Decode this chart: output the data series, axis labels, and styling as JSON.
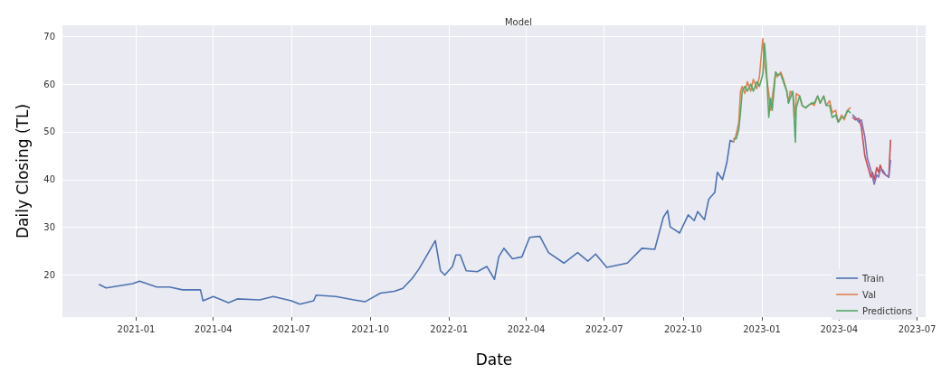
{
  "chart_data": {
    "type": "line",
    "title": "Model",
    "xlabel": "Date",
    "ylabel": "Daily Closing (TL)",
    "xlim": [
      "2020-10-07",
      "2023-07-11"
    ],
    "xticks": [
      "2021-01",
      "2021-04",
      "2021-07",
      "2021-10",
      "2022-01",
      "2022-04",
      "2022-07",
      "2022-10",
      "2023-01",
      "2023-04",
      "2023-07"
    ],
    "ylim": [
      11.2,
      72.3
    ],
    "yticks": [
      20,
      30,
      40,
      50,
      60,
      70
    ],
    "grid": true,
    "legend": "bottom right",
    "marker": "none",
    "line_style": "solid",
    "series": [
      {
        "name": "Train",
        "color": "#4c72b0",
        "x": [
          "2020-11-19",
          "2020-11-27",
          "2020-12-28",
          "2021-01-05",
          "2021-01-25",
          "2021-02-09",
          "2021-02-24",
          "2021-03-17",
          "2021-03-20",
          "2021-04-01",
          "2021-04-19",
          "2021-04-29",
          "2021-05-25",
          "2021-06-10",
          "2021-07-01",
          "2021-07-11",
          "2021-07-27",
          "2021-07-30",
          "2021-08-22",
          "2021-09-12",
          "2021-09-25",
          "2021-10-01",
          "2021-10-13",
          "2021-10-29",
          "2021-11-08",
          "2021-11-19",
          "2021-11-27",
          "2021-12-08",
          "2021-12-16",
          "2021-12-22",
          "2021-12-27",
          "2022-01-05",
          "2022-01-09",
          "2022-01-14",
          "2022-01-21",
          "2022-02-03",
          "2022-02-14",
          "2022-02-23",
          "2022-02-28",
          "2022-03-06",
          "2022-03-16",
          "2022-03-27",
          "2022-04-05",
          "2022-04-17",
          "2022-04-27",
          "2022-05-15",
          "2022-05-31",
          "2022-06-12",
          "2022-06-21",
          "2022-07-04",
          "2022-07-28",
          "2022-08-14",
          "2022-08-29",
          "2022-09-08",
          "2022-09-13",
          "2022-09-16",
          "2022-09-27",
          "2022-10-07",
          "2022-10-14",
          "2022-10-18",
          "2022-10-26",
          "2022-10-31",
          "2022-11-07",
          "2022-11-10",
          "2022-11-16",
          "2022-11-21",
          "2022-11-25",
          "2022-11-29"
        ],
        "values": [
          18.0,
          17.3,
          18.2,
          18.7,
          17.5,
          17.5,
          16.9,
          16.9,
          14.6,
          15.5,
          14.2,
          15.0,
          14.8,
          15.5,
          14.6,
          13.9,
          14.6,
          15.8,
          15.5,
          14.8,
          14.4,
          15.0,
          16.2,
          16.6,
          17.2,
          19.3,
          21.3,
          24.7,
          27.2,
          20.9,
          20.0,
          21.8,
          24.2,
          24.2,
          20.9,
          20.7,
          21.8,
          19.1,
          23.8,
          25.6,
          23.4,
          23.8,
          27.9,
          28.1,
          24.7,
          22.5,
          24.7,
          22.9,
          24.4,
          21.6,
          22.5,
          25.6,
          25.4,
          32.1,
          33.5,
          30.1,
          28.8,
          32.6,
          31.4,
          33.3,
          31.6,
          35.9,
          37.3,
          41.5,
          40.0,
          43.5,
          48.2,
          47.9
        ]
      },
      {
        "name": "Val",
        "color": "#dd8452",
        "x": [
          "2022-11-29",
          "2022-12-02",
          "2022-12-05",
          "2022-12-07",
          "2022-12-09",
          "2022-12-12",
          "2022-12-15",
          "2022-12-19",
          "2022-12-22",
          "2022-12-26",
          "2022-12-29",
          "2023-01-02",
          "2023-01-04",
          "2023-01-06",
          "2023-01-09",
          "2023-01-11",
          "2023-01-13",
          "2023-01-17",
          "2023-01-19",
          "2023-01-23",
          "2023-01-26",
          "2023-01-30",
          "2023-02-01",
          "2023-02-03",
          "2023-02-06",
          "2023-02-09",
          "2023-02-10",
          "2023-02-14",
          "2023-02-17",
          "2023-02-21",
          "2023-02-24",
          "2023-02-28",
          "2023-03-03",
          "2023-03-07",
          "2023-03-10",
          "2023-03-14",
          "2023-03-17",
          "2023-03-21",
          "2023-03-24",
          "2023-03-28",
          "2023-03-31",
          "2023-04-04",
          "2023-04-07",
          "2023-04-11",
          "2023-04-14"
        ],
        "values": [
          47.9,
          49.5,
          52,
          58.5,
          59.5,
          58,
          60.5,
          58.5,
          61,
          59,
          61.5,
          69.5,
          64,
          62,
          58,
          54.5,
          57,
          62.5,
          61.5,
          62.5,
          61,
          58.5,
          56,
          58.5,
          58,
          53,
          58,
          57.5,
          55.5,
          55,
          55.5,
          56,
          55.5,
          57.5,
          56,
          57.5,
          55.5,
          56.5,
          54,
          54.5,
          52,
          53.5,
          52.5,
          54.5,
          55
        ]
      },
      {
        "name": "Predictions",
        "color": "#55a868",
        "x": [
          "2022-11-29",
          "2022-12-02",
          "2022-12-05",
          "2022-12-07",
          "2022-12-09",
          "2022-12-12",
          "2022-12-15",
          "2022-12-19",
          "2022-12-22",
          "2022-12-26",
          "2022-12-29",
          "2023-01-02",
          "2023-01-04",
          "2023-01-06",
          "2023-01-09",
          "2023-01-11",
          "2023-01-13",
          "2023-01-17",
          "2023-01-19",
          "2023-01-23",
          "2023-01-26",
          "2023-01-30",
          "2023-02-01",
          "2023-02-03",
          "2023-02-06",
          "2023-02-09",
          "2023-02-10",
          "2023-02-14",
          "2023-02-17",
          "2023-02-21",
          "2023-02-24",
          "2023-02-28",
          "2023-03-03",
          "2023-03-07",
          "2023-03-10",
          "2023-03-14",
          "2023-03-17",
          "2023-03-21",
          "2023-03-24",
          "2023-03-28",
          "2023-03-31",
          "2023-04-04",
          "2023-04-07",
          "2023-04-11",
          "2023-04-14"
        ],
        "values": [
          48.5,
          48.5,
          50.5,
          54,
          58.5,
          59.5,
          58.5,
          60,
          58.5,
          60.5,
          59.5,
          62,
          68.5,
          64,
          53,
          57,
          54.5,
          62.5,
          62,
          62,
          60.5,
          58.5,
          56,
          57,
          58.5,
          47.8,
          55,
          57.5,
          55.5,
          55,
          55.5,
          56,
          56,
          57.5,
          56,
          57.5,
          55.5,
          55.5,
          53,
          53.5,
          52,
          53,
          53,
          54.5,
          54
        ]
      },
      {
        "color": "#c44e52",
        "x": [
          "2023-04-17",
          "2023-04-20",
          "2023-04-24",
          "2023-04-27",
          "2023-05-01",
          "2023-05-04",
          "2023-05-08",
          "2023-05-10",
          "2023-05-12",
          "2023-05-15",
          "2023-05-17",
          "2023-05-19",
          "2023-05-22",
          "2023-05-25",
          "2023-05-29",
          "2023-05-31"
        ],
        "values": [
          53,
          52.5,
          52.8,
          51,
          45,
          43,
          40.5,
          41.5,
          40,
          42.5,
          41.5,
          43,
          41.5,
          41,
          40.5,
          48.2
        ]
      },
      {
        "color": "#8172b3",
        "x": [
          "2023-04-17",
          "2023-04-20",
          "2023-04-24",
          "2023-04-27",
          "2023-05-01",
          "2023-05-04",
          "2023-05-08",
          "2023-05-10",
          "2023-05-12",
          "2023-05-15",
          "2023-05-17",
          "2023-05-19",
          "2023-05-22",
          "2023-05-25",
          "2023-05-29",
          "2023-05-31"
        ],
        "values": [
          53.5,
          53,
          52,
          52.5,
          49,
          44.5,
          42,
          40.5,
          39,
          41,
          40.5,
          42,
          42,
          41,
          40.5,
          44
        ]
      }
    ]
  }
}
